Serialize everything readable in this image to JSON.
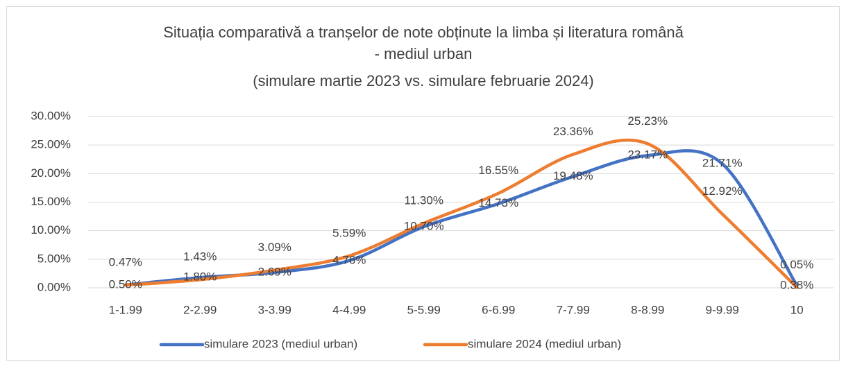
{
  "chart_data": {
    "type": "line",
    "title": [
      "Situația comparativă a tranșelor de note obținute la limba și literatura română",
      "- mediul urban",
      "(simulare martie 2023 vs. simulare februarie 2024)"
    ],
    "categories": [
      "1-1.99",
      "2-2.99",
      "3-3.99",
      "4-4.99",
      "5-5.99",
      "6-6.99",
      "7-7.99",
      "8-8.99",
      "9-9.99",
      "10"
    ],
    "series": [
      {
        "name": "simulare 2023 (mediul urban)",
        "color": "#4472c4",
        "values": [
          0.5,
          1.8,
          2.69,
          4.76,
          10.7,
          14.73,
          19.48,
          23.17,
          21.71,
          0.38
        ],
        "value_labels": [
          "0.50%",
          "1.80%",
          "2.69%",
          "4.76%",
          "10.70%",
          "14.73%",
          "19.48%",
          "23.17%",
          "21.71%",
          "0.38%"
        ]
      },
      {
        "name": "simulare 2024 (mediul urban)",
        "color": "#ed7d31",
        "values": [
          0.47,
          1.43,
          3.09,
          5.59,
          11.3,
          16.55,
          23.36,
          25.23,
          12.92,
          0.05
        ],
        "value_labels": [
          "0.47%",
          "1.43%",
          "3.09%",
          "5.59%",
          "11.30%",
          "16.55%",
          "23.36%",
          "25.23%",
          "12.92%",
          "0.05%"
        ]
      }
    ],
    "ylim": [
      0,
      30
    ],
    "yticks": [
      {
        "value": 0,
        "label": "0.00%"
      },
      {
        "value": 5,
        "label": "5.00%"
      },
      {
        "value": 10,
        "label": "10.00%"
      },
      {
        "value": 15,
        "label": "15.00%"
      },
      {
        "value": 20,
        "label": "20.00%"
      },
      {
        "value": 25,
        "label": "25.00%"
      },
      {
        "value": 30,
        "label": "30.00%"
      }
    ],
    "grid": true,
    "smooth": true,
    "legend": "bottom"
  }
}
